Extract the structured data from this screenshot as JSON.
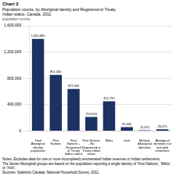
{
  "chart_data": {
    "type": "bar",
    "title": "Chart 2",
    "subtitle": [
      "Population counts, by Aboriginal identity and Registered or Treaty",
      "Indian status, Canada, 2011"
    ],
    "ylabel": "population counts",
    "categories": [
      "Total\nAboriginal\nidentity\npopulation",
      "First\nNations",
      "First\nNations -\nRegistered\nor Treaty\nIndian status",
      "First Nations\n- No\nRegistered or\nTreaty Indian\nstatus",
      "Métis",
      "Inuit",
      "Multiple\nAboriginal\nidentities",
      "Aboriginal\nidentities not\nincluded\nelsewhere"
    ],
    "values": [
      1400685,
      851560,
      637660,
      213900,
      451795,
      59445,
      11415,
      26475
    ],
    "value_labels": [
      "1,400,685",
      "851,560",
      "637,660",
      "213,900",
      "451,795",
      "59,445",
      "11,415",
      "26,475"
    ],
    "data_labels": true,
    "color": "#1b3263",
    "ylim": [
      0,
      1600000
    ],
    "yticks": [
      0,
      {
        "value": 400000,
        "label": "400,000"
      },
      {
        "value": 800000,
        "label": "800,000"
      },
      {
        "value": 1200000,
        "label": "1,200,000"
      },
      {
        "value": 1600000,
        "label": "1,600,000"
      }
    ],
    "grid": true,
    "annotations": [
      "Notes: Excludes data for one or more incompletely enumerated Indian reserves or Indian settlements.",
      "The Seven Aboriginal groups are based on the population reporting a single identity of ‘First Nations’, ‘Métis’, or ‘Inuit’.",
      "Sources: Statistics Canada, National Household Survey, 2011."
    ]
  }
}
